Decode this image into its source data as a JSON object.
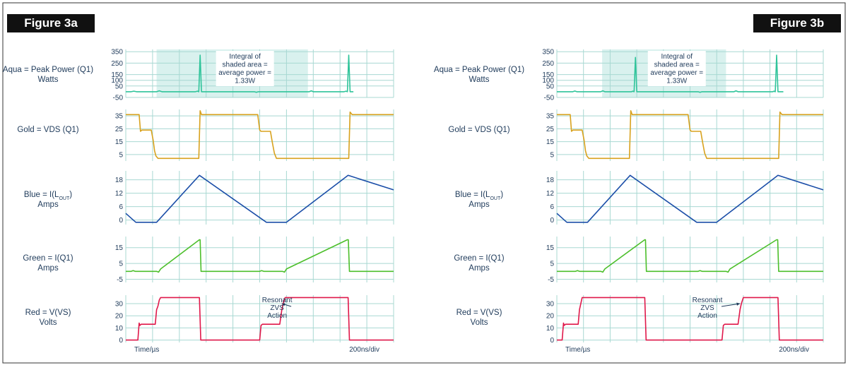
{
  "figures": [
    {
      "title": "Figure 3a",
      "xlabel_left": "Time/µs",
      "xlabel_right": "200ns/div",
      "shaded_annotation": [
        "Integral of",
        "shaded area =",
        "average power =",
        "1.33W"
      ],
      "resonant_annotation": [
        "Resonant",
        "ZVS",
        "Action"
      ]
    },
    {
      "title": "Figure 3b",
      "xlabel_left": "Time/µs",
      "xlabel_right": "200ns/div",
      "shaded_annotation": [
        "Integral of",
        "shaded area =",
        "average power =",
        "1.33W"
      ],
      "resonant_annotation": [
        "Resonant",
        "ZVS",
        "Action"
      ]
    }
  ],
  "chart_data": [
    {
      "type": "line",
      "title": "Figure 3a",
      "x_range": [
        0,
        2000
      ],
      "x_unit": "ns",
      "x_scale_text": "200ns/div",
      "grid": true,
      "panels": [
        {
          "key": "power",
          "ylabel": [
            "Aqua = Peak Power (Q1)",
            "Watts"
          ],
          "color": "#2fc49a",
          "yticks": [
            350,
            250,
            150,
            100,
            50,
            -50
          ],
          "ylim": [
            -50,
            370
          ],
          "shaded_x": [
            230,
            1360
          ],
          "points": [
            [
              0,
              0
            ],
            [
              40,
              0
            ],
            [
              60,
              5
            ],
            [
              80,
              0
            ],
            [
              230,
              0
            ],
            [
              250,
              8
            ],
            [
              270,
              0
            ],
            [
              520,
              0
            ],
            [
              535,
              5
            ],
            [
              545,
              0
            ],
            [
              555,
              320
            ],
            [
              565,
              0
            ],
            [
              590,
              0
            ],
            [
              960,
              0
            ],
            [
              975,
              -5
            ],
            [
              990,
              0
            ],
            [
              1370,
              0
            ],
            [
              1385,
              8
            ],
            [
              1400,
              0
            ],
            [
              1630,
              0
            ],
            [
              1645,
              5
            ],
            [
              1655,
              0
            ],
            [
              1665,
              320
            ],
            [
              1675,
              0
            ],
            [
              1700,
              0
            ]
          ]
        },
        {
          "key": "vds",
          "ylabel": [
            "Gold = VDS (Q1)"
          ],
          "color": "#d8a21e",
          "yticks": [
            35,
            25,
            15,
            5
          ],
          "ylim": [
            0,
            40
          ],
          "points": [
            [
              0,
              36
            ],
            [
              100,
              36
            ],
            [
              110,
              23
            ],
            [
              120,
              24
            ],
            [
              190,
              24
            ],
            [
              205,
              16
            ],
            [
              215,
              8
            ],
            [
              225,
              4
            ],
            [
              240,
              2
            ],
            [
              520,
              2
            ],
            [
              545,
              2
            ],
            [
              555,
              39
            ],
            [
              565,
              36
            ],
            [
              985,
              36
            ],
            [
              1000,
              24
            ],
            [
              1010,
              23
            ],
            [
              1080,
              23
            ],
            [
              1095,
              14
            ],
            [
              1110,
              6
            ],
            [
              1125,
              2
            ],
            [
              1640,
              2
            ],
            [
              1665,
              2
            ],
            [
              1675,
              38
            ],
            [
              1690,
              36
            ],
            [
              2000,
              36
            ]
          ]
        },
        {
          "key": "iout",
          "ylabel": [
            "Blue = I(L_OUT)",
            "Amps"
          ],
          "color": "#1b4ea8",
          "yticks": [
            18,
            12,
            6,
            0
          ],
          "ylim": [
            -2,
            22
          ],
          "points": [
            [
              0,
              3
            ],
            [
              75,
              -1
            ],
            [
              230,
              -1
            ],
            [
              550,
              20
            ],
            [
              1050,
              -1
            ],
            [
              1200,
              -1
            ],
            [
              1660,
              20
            ],
            [
              2000,
              13.5
            ]
          ]
        },
        {
          "key": "iq1",
          "ylabel": [
            "Green = I(Q1)",
            "Amps"
          ],
          "color": "#4cbf2b",
          "yticks": [
            15,
            5,
            -5
          ],
          "ylim": [
            -7,
            22
          ],
          "points": [
            [
              0,
              0
            ],
            [
              40,
              0
            ],
            [
              55,
              0.5
            ],
            [
              70,
              0
            ],
            [
              230,
              0
            ],
            [
              245,
              -0.5
            ],
            [
              260,
              1.5
            ],
            [
              550,
              20
            ],
            [
              555,
              20
            ],
            [
              562,
              0
            ],
            [
              1000,
              0
            ],
            [
              1015,
              0.5
            ],
            [
              1030,
              0
            ],
            [
              1170,
              0
            ],
            [
              1185,
              -0.5
            ],
            [
              1200,
              1.5
            ],
            [
              1655,
              20
            ],
            [
              1662,
              20
            ],
            [
              1670,
              0
            ],
            [
              2000,
              0
            ]
          ]
        },
        {
          "key": "vs",
          "ylabel": [
            "Red = V(VS)",
            "Volts"
          ],
          "color": "#e0184a",
          "yticks": [
            30,
            20,
            10,
            0
          ],
          "ylim": [
            -2,
            37
          ],
          "points": [
            [
              0,
              0
            ],
            [
              90,
              0
            ],
            [
              100,
              14
            ],
            [
              105,
              12
            ],
            [
              115,
              13
            ],
            [
              220,
              13
            ],
            [
              230,
              25
            ],
            [
              240,
              28
            ],
            [
              250,
              33
            ],
            [
              260,
              35
            ],
            [
              550,
              35
            ],
            [
              560,
              0
            ],
            [
              1000,
              0
            ],
            [
              1010,
              12
            ],
            [
              1020,
              13
            ],
            [
              1150,
              13
            ],
            [
              1165,
              25
            ],
            [
              1175,
              30
            ],
            [
              1190,
              35
            ],
            [
              1660,
              35
            ],
            [
              1670,
              0
            ],
            [
              2000,
              0
            ]
          ]
        }
      ]
    },
    {
      "type": "line",
      "title": "Figure 3b",
      "x_range": [
        0,
        2000
      ],
      "x_unit": "ns",
      "x_scale_text": "200ns/div",
      "grid": true,
      "panels": [
        {
          "key": "power",
          "ylabel": [
            "Aqua = Peak Power (Q1)",
            "Watts"
          ],
          "color": "#2fc49a",
          "yticks": [
            350,
            250,
            150,
            100,
            50,
            -50
          ],
          "ylim": [
            -50,
            370
          ],
          "shaded_x": [
            340,
            1270
          ],
          "points": [
            [
              0,
              0
            ],
            [
              120,
              0
            ],
            [
              135,
              6
            ],
            [
              150,
              0
            ],
            [
              330,
              0
            ],
            [
              345,
              8
            ],
            [
              360,
              0
            ],
            [
              560,
              0
            ],
            [
              570,
              5
            ],
            [
              580,
              0
            ],
            [
              590,
              300
            ],
            [
              600,
              0
            ],
            [
              620,
              0
            ],
            [
              1060,
              0
            ],
            [
              1075,
              -5
            ],
            [
              1090,
              0
            ],
            [
              1330,
              0
            ],
            [
              1345,
              8
            ],
            [
              1360,
              0
            ],
            [
              1620,
              0
            ],
            [
              1630,
              5
            ],
            [
              1640,
              0
            ],
            [
              1650,
              320
            ],
            [
              1660,
              0
            ],
            [
              1700,
              0
            ]
          ]
        },
        {
          "key": "vds",
          "ylabel": [
            "Gold = VDS (Q1)"
          ],
          "color": "#d8a21e",
          "yticks": [
            35,
            25,
            15,
            5
          ],
          "ylim": [
            0,
            40
          ],
          "points": [
            [
              0,
              36
            ],
            [
              100,
              36
            ],
            [
              110,
              23
            ],
            [
              120,
              24
            ],
            [
              190,
              24
            ],
            [
              205,
              16
            ],
            [
              215,
              8
            ],
            [
              225,
              4
            ],
            [
              240,
              2
            ],
            [
              520,
              2
            ],
            [
              545,
              2
            ],
            [
              555,
              39
            ],
            [
              565,
              36
            ],
            [
              985,
              36
            ],
            [
              1000,
              24
            ],
            [
              1010,
              23
            ],
            [
              1080,
              23
            ],
            [
              1095,
              14
            ],
            [
              1110,
              6
            ],
            [
              1125,
              2
            ],
            [
              1640,
              2
            ],
            [
              1665,
              2
            ],
            [
              1675,
              38
            ],
            [
              1690,
              36
            ],
            [
              2000,
              36
            ]
          ]
        },
        {
          "key": "iout",
          "ylabel": [
            "Blue = I(L_OUT)",
            "Amps"
          ],
          "color": "#1b4ea8",
          "yticks": [
            18,
            12,
            6,
            0
          ],
          "ylim": [
            -2,
            22
          ],
          "points": [
            [
              0,
              3
            ],
            [
              75,
              -1
            ],
            [
              230,
              -1
            ],
            [
              550,
              20
            ],
            [
              1050,
              -1
            ],
            [
              1200,
              -1
            ],
            [
              1660,
              20
            ],
            [
              2000,
              13.5
            ]
          ]
        },
        {
          "key": "iq1",
          "ylabel": [
            "Green = I(Q1)",
            "Amps"
          ],
          "color": "#4cbf2b",
          "yticks": [
            15,
            5,
            -5
          ],
          "ylim": [
            -7,
            22
          ],
          "points": [
            [
              0,
              0
            ],
            [
              140,
              0
            ],
            [
              155,
              0.5
            ],
            [
              170,
              0
            ],
            [
              330,
              0
            ],
            [
              345,
              -0.5
            ],
            [
              360,
              1.5
            ],
            [
              660,
              20
            ],
            [
              665,
              20
            ],
            [
              672,
              0
            ],
            [
              1060,
              0
            ],
            [
              1075,
              0.5
            ],
            [
              1090,
              0
            ],
            [
              1270,
              0
            ],
            [
              1285,
              -0.5
            ],
            [
              1300,
              1.5
            ],
            [
              1650,
              20
            ],
            [
              1658,
              20
            ],
            [
              1665,
              0
            ],
            [
              2000,
              0
            ]
          ]
        },
        {
          "key": "vs",
          "ylabel": [
            "Red = V(VS)",
            "Volts"
          ],
          "color": "#e0184a",
          "yticks": [
            30,
            20,
            10,
            0
          ],
          "ylim": [
            -2,
            37
          ],
          "points": [
            [
              0,
              0
            ],
            [
              40,
              0
            ],
            [
              50,
              14
            ],
            [
              55,
              12
            ],
            [
              65,
              13
            ],
            [
              160,
              13
            ],
            [
              170,
              25
            ],
            [
              180,
              30
            ],
            [
              190,
              35
            ],
            [
              660,
              35
            ],
            [
              670,
              0
            ],
            [
              1240,
              0
            ],
            [
              1250,
              12
            ],
            [
              1260,
              13
            ],
            [
              1360,
              13
            ],
            [
              1375,
              25
            ],
            [
              1385,
              30
            ],
            [
              1400,
              35
            ],
            [
              1660,
              35
            ],
            [
              1670,
              0
            ],
            [
              2000,
              0
            ]
          ]
        }
      ]
    }
  ]
}
